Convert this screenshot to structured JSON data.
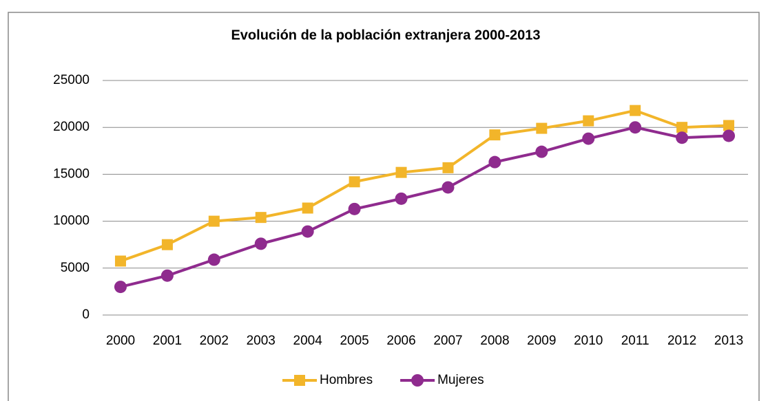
{
  "chart_data": {
    "type": "line",
    "title": "Evolución de la población extranjera 2000-2013",
    "categories": [
      "2000",
      "2001",
      "2002",
      "2003",
      "2004",
      "2005",
      "2006",
      "2007",
      "2008",
      "2009",
      "2010",
      "2011",
      "2012",
      "2013"
    ],
    "series": [
      {
        "name": "Hombres",
        "color": "#f2b52a",
        "marker": "square",
        "values": [
          5750,
          7500,
          10000,
          10400,
          11400,
          14200,
          15200,
          15700,
          19200,
          19900,
          20700,
          21800,
          20000,
          20200
        ]
      },
      {
        "name": "Mujeres",
        "color": "#8f2b8e",
        "marker": "circle",
        "values": [
          3000,
          4200,
          5900,
          7600,
          8900,
          11300,
          12400,
          13600,
          16300,
          17400,
          18800,
          20000,
          18900,
          19100
        ]
      }
    ],
    "ylim": [
      0,
      25000
    ],
    "yticks": [
      0,
      5000,
      10000,
      15000,
      20000,
      25000
    ],
    "grid": true,
    "legend": "bottom"
  }
}
